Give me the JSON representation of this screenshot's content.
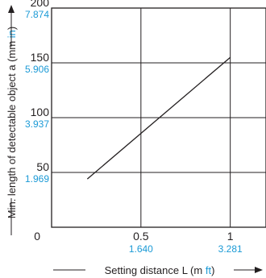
{
  "chart_data": {
    "type": "line",
    "xlabel": {
      "prefix": "Setting distance L (m ",
      "alt_unit": "ft",
      "suffix": ")"
    },
    "ylabel": {
      "prefix": "Min. length of detectable object a (mm ",
      "alt_unit": "in",
      "suffix": ")"
    },
    "xlim": [
      0,
      1.2
    ],
    "ylim": [
      0,
      200
    ],
    "x_ticks": [
      {
        "value": 0,
        "label": "0",
        "sub": ""
      },
      {
        "value": 0.5,
        "label": "0.5",
        "sub": "1.640"
      },
      {
        "value": 1,
        "label": "1",
        "sub": "3.281"
      }
    ],
    "y_ticks": [
      {
        "value": 50,
        "label": "50",
        "sub": "1.969"
      },
      {
        "value": 100,
        "label": "100",
        "sub": "3.937"
      },
      {
        "value": 150,
        "label": "150",
        "sub": "5.906"
      },
      {
        "value": 200,
        "label": "200",
        "sub": "7.874"
      }
    ],
    "grid": true,
    "series": [
      {
        "x": [
          0.2,
          1.0
        ],
        "y": [
          44,
          155
        ]
      }
    ],
    "colors": {
      "line": "#231f20",
      "grid": "#231f20",
      "accent": "#1b9ad6"
    }
  }
}
